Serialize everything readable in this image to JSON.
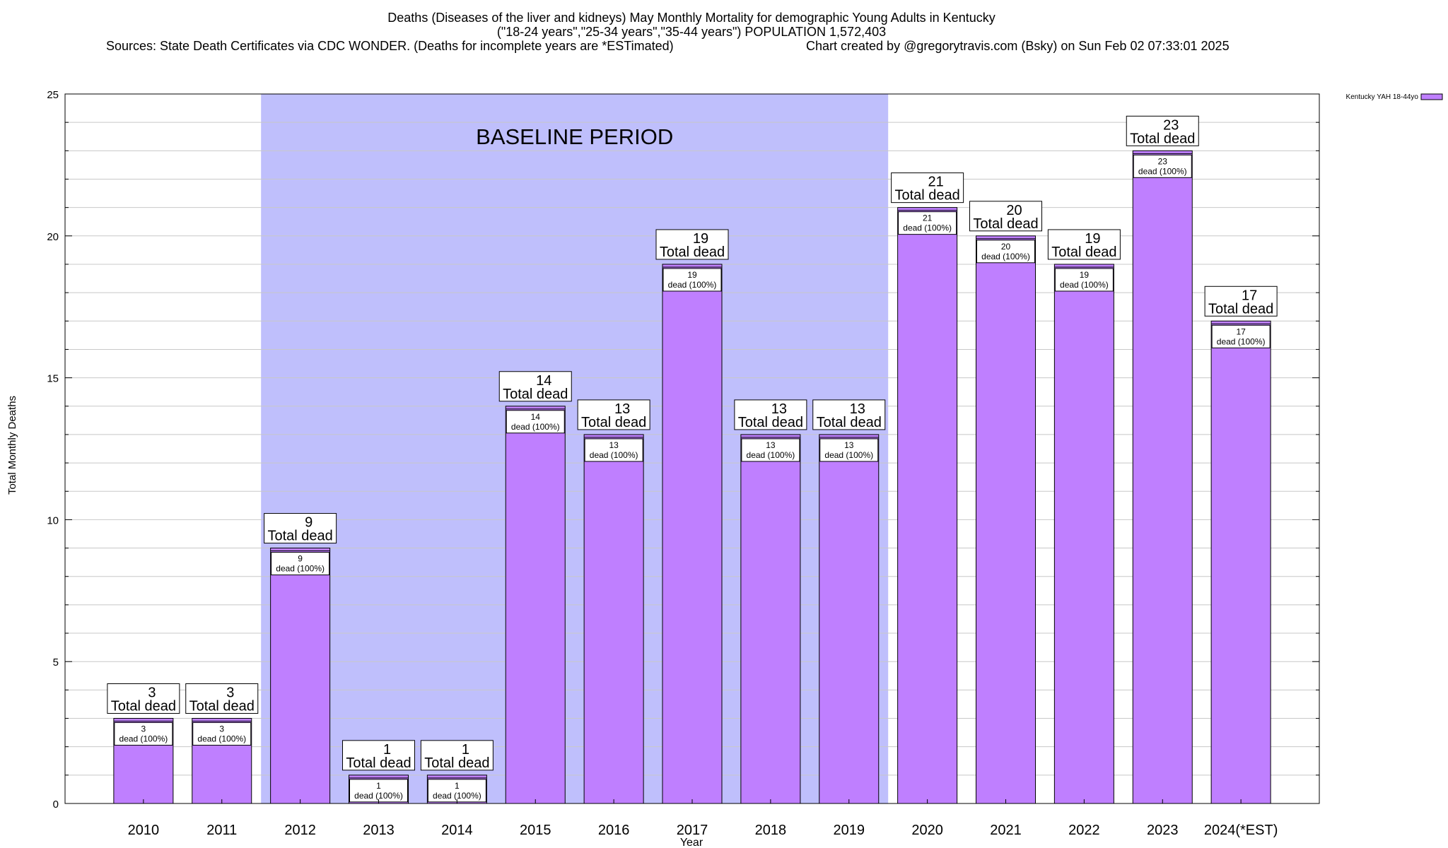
{
  "chart_data": {
    "type": "bar",
    "title": "Deaths (Diseases of the liver and kidneys) May Monthly Mortality for demographic Young Adults in Kentucky",
    "subtitle": "(\"18-24 years\",\"25-34 years\",\"35-44 years\") POPULATION 1,572,403",
    "sources": "Sources: State Death Certificates via CDC WONDER. (Deaths for incomplete years are *ESTimated)",
    "credit": "Chart created by @gregorytravis.com (Bsky) on Sun Feb 02 07:33:01 2025",
    "xlabel": "Year",
    "ylabel": "Total Monthly Deaths",
    "ylim": [
      0,
      25
    ],
    "yticks": [
      0,
      5,
      10,
      15,
      20,
      25
    ],
    "grid": true,
    "legend_position": "top-right",
    "baseline": {
      "label": "BASELINE PERIOD",
      "start_category": "2012",
      "end_category": "2019",
      "color": "#bfbffc"
    },
    "categories": [
      "2010",
      "2011",
      "2012",
      "2013",
      "2014",
      "2015",
      "2016",
      "2017",
      "2018",
      "2019",
      "2020",
      "2021",
      "2022",
      "2023",
      "2024(*EST)"
    ],
    "series": [
      {
        "name": "Kentucky YAH 18-44yo",
        "color": "#bf7fff",
        "values": [
          3,
          3,
          9,
          1,
          1,
          14,
          13,
          19,
          13,
          13,
          21,
          20,
          19,
          23,
          17
        ]
      }
    ],
    "total_label_suffix": "Total dead",
    "inner_label_suffix": "dead (100%)"
  }
}
